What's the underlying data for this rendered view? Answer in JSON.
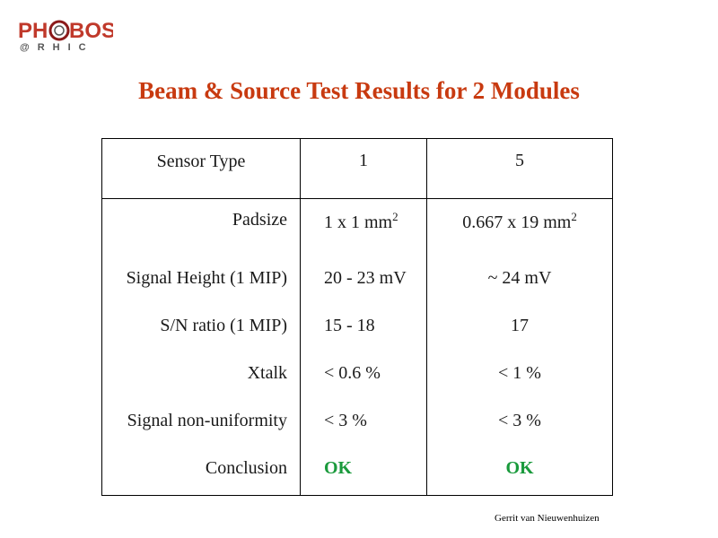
{
  "logo": {
    "line1": "PHOBOS",
    "line2": "@ RHIC",
    "primary_color": "#c0392b",
    "secondary_color": "#555555"
  },
  "title": "Beam & Source Test Results for 2 Modules",
  "table": {
    "header": {
      "label": "Sensor Type",
      "module1": "1",
      "module5": "5"
    },
    "rows": [
      {
        "label": "Padsize",
        "module1": "1 x 1 mm",
        "module1_sup": "2",
        "module5": "0.667 x 19 mm",
        "module5_sup": "2"
      },
      {
        "label": "Signal Height (1 MIP)",
        "module1": "20 - 23 mV",
        "module5": "~ 24 mV"
      },
      {
        "label": "S/N ratio (1 MIP)",
        "module1": "15 - 18",
        "module5": "17"
      },
      {
        "label": "Xtalk",
        "module1": "< 0.6 %",
        "module5": "< 1 %"
      },
      {
        "label": "Signal non-uniformity",
        "module1": "< 3 %",
        "module5": "< 3 %"
      },
      {
        "label": "Conclusion",
        "module1": "OK",
        "module5": "OK"
      }
    ]
  },
  "colors": {
    "title": "#c83a10",
    "ok": "#1a9a3c"
  },
  "footer": "Gerrit van Nieuwenhuizen"
}
